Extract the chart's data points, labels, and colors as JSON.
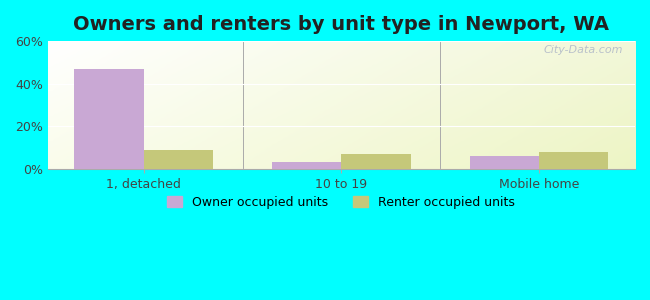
{
  "title": "Owners and renters by unit type in Newport, WA",
  "categories": [
    "1, detached",
    "10 to 19",
    "Mobile home"
  ],
  "owner_values": [
    47.0,
    3.2,
    6.0
  ],
  "renter_values": [
    9.0,
    7.0,
    8.0
  ],
  "owner_color": "#c9a8d4",
  "renter_color": "#c5c87a",
  "ylim": [
    0,
    60
  ],
  "yticks": [
    0,
    20,
    40,
    60
  ],
  "ytick_labels": [
    "0%",
    "20%",
    "40%",
    "60%"
  ],
  "legend_owner": "Owner occupied units",
  "legend_renter": "Renter occupied units",
  "bar_width": 0.35,
  "outer_bg": "#00ffff",
  "title_fontsize": 14,
  "watermark": "City-Data.com"
}
